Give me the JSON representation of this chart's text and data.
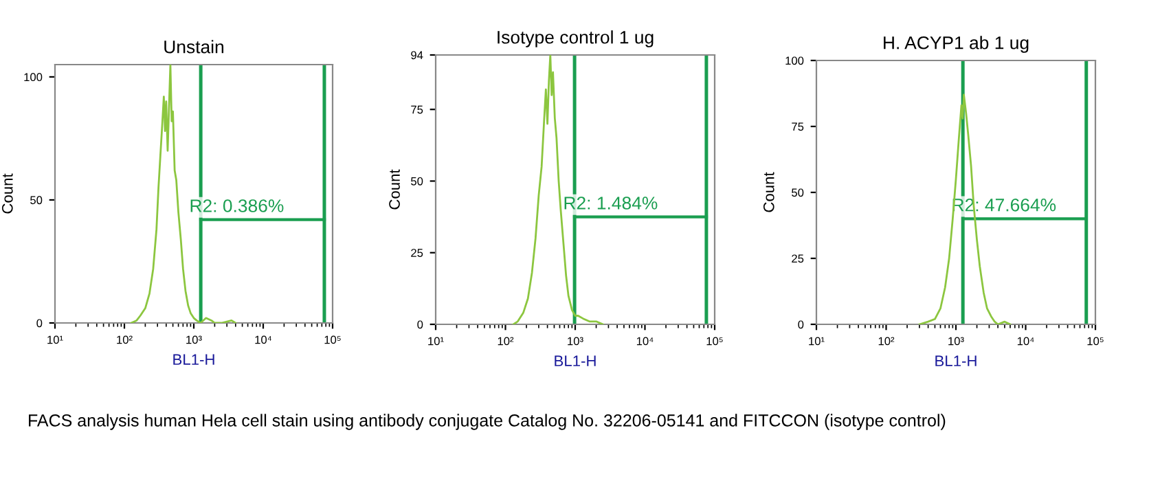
{
  "chart_data": [
    {
      "type": "line",
      "title": "Unstain",
      "xlabel": "BL1-H",
      "ylabel": "Count",
      "log": "x",
      "xlim": [
        10,
        100000
      ],
      "xticks": [
        {
          "value": 10,
          "label": "10¹"
        },
        {
          "value": 100,
          "label": "10²"
        },
        {
          "value": 1000,
          "label": "10³"
        },
        {
          "value": 10000,
          "label": "10⁴"
        },
        {
          "value": 100000,
          "label": "10⁵"
        }
      ],
      "ylim": [
        0,
        105
      ],
      "yticks": [
        0,
        50,
        100
      ],
      "grid": false,
      "legend": false,
      "series": [
        {
          "color": "#8cc63f",
          "x": [
            125,
            150,
            170,
            200,
            230,
            260,
            290,
            310,
            330,
            350,
            370,
            385,
            400,
            420,
            440,
            460,
            480,
            500,
            530,
            560,
            600,
            650,
            700,
            760,
            830,
            900,
            1000,
            1100,
            1250,
            1500,
            1800,
            2000,
            2500,
            3500,
            4000
          ],
          "values": [
            0,
            1,
            3,
            6,
            12,
            22,
            38,
            55,
            68,
            80,
            92,
            78,
            90,
            70,
            88,
            105,
            82,
            86,
            62,
            58,
            45,
            34,
            22,
            13,
            7,
            4,
            2,
            1,
            0,
            2,
            1,
            0,
            0,
            1,
            0
          ]
        },
        {
          "name": "R2: 0.386%",
          "color": "#1a9e50",
          "x": [
            1260,
            76000
          ],
          "values": [
            42,
            42
          ]
        }
      ],
      "ref_lines": [
        {
          "axis": "x",
          "value": 1260,
          "label": null,
          "color": "#1a9e50"
        },
        {
          "axis": "x",
          "value": 76000,
          "label": null,
          "color": "#1a9e50"
        }
      ]
    },
    {
      "type": "line",
      "title": "Isotype control 1 ug",
      "xlabel": "BL1-H",
      "ylabel": "Count",
      "log": "x",
      "xlim": [
        10,
        100000
      ],
      "xticks": [
        {
          "value": 10,
          "label": "10¹"
        },
        {
          "value": 100,
          "label": "10²"
        },
        {
          "value": 1000,
          "label": "10³"
        },
        {
          "value": 10000,
          "label": "10⁴"
        },
        {
          "value": 100000,
          "label": "10⁵"
        }
      ],
      "ylim": [
        0,
        94
      ],
      "yticks": [
        0,
        25,
        50,
        75,
        94
      ],
      "grid": false,
      "legend": false,
      "series": [
        {
          "color": "#8cc63f",
          "x": [
            130,
            150,
            180,
            210,
            240,
            270,
            300,
            330,
            360,
            380,
            400,
            420,
            440,
            460,
            480,
            510,
            540,
            580,
            620,
            680,
            740,
            800,
            900,
            1000,
            1100,
            1300,
            1600,
            2000,
            2500
          ],
          "values": [
            0,
            1,
            4,
            9,
            18,
            30,
            45,
            55,
            72,
            82,
            70,
            85,
            94,
            80,
            88,
            72,
            65,
            50,
            40,
            28,
            17,
            10,
            5,
            3,
            3,
            2,
            1,
            1,
            0
          ]
        },
        {
          "name": "R2: 1.484%",
          "color": "#1a9e50",
          "x": [
            980,
            76000
          ],
          "values": [
            37.5,
            37.5
          ]
        }
      ],
      "ref_lines": [
        {
          "axis": "x",
          "value": 980,
          "label": null,
          "color": "#1a9e50"
        },
        {
          "axis": "x",
          "value": 76000,
          "label": null,
          "color": "#1a9e50"
        }
      ]
    },
    {
      "type": "line",
      "title": "H. ACYP1 ab 1 ug",
      "xlabel": "BL1-H",
      "ylabel": "Count",
      "log": "x",
      "xlim": [
        10,
        100000
      ],
      "xticks": [
        {
          "value": 10,
          "label": "10¹"
        },
        {
          "value": 100,
          "label": "10²"
        },
        {
          "value": 1000,
          "label": "10³"
        },
        {
          "value": 10000,
          "label": "10⁴"
        },
        {
          "value": 100000,
          "label": "10⁵"
        }
      ],
      "ylim": [
        0,
        100
      ],
      "yticks": [
        0,
        25,
        50,
        75,
        100
      ],
      "grid": false,
      "legend": false,
      "series": [
        {
          "color": "#8cc63f",
          "x": [
            300,
            400,
            500,
            600,
            700,
            800,
            900,
            1000,
            1100,
            1200,
            1250,
            1300,
            1400,
            1500,
            1650,
            1800,
            2000,
            2200,
            2500,
            2800,
            3200,
            3600,
            4000,
            5000,
            6000
          ],
          "values": [
            0,
            1,
            2,
            6,
            14,
            25,
            40,
            55,
            70,
            83,
            78,
            87,
            80,
            72,
            60,
            45,
            32,
            22,
            12,
            6,
            3,
            1,
            0,
            1,
            0
          ]
        },
        {
          "name": "R2: 47.664%",
          "color": "#1a9e50",
          "x": [
            1260,
            74000
          ],
          "values": [
            40,
            40
          ]
        }
      ],
      "ref_lines": [
        {
          "axis": "x",
          "value": 1260,
          "label": null,
          "color": "#1a9e50"
        },
        {
          "axis": "x",
          "value": 74000,
          "label": null,
          "color": "#1a9e50"
        }
      ],
      "annotations": [
        "FACS analysis human Hela cell stain using antibody conjugate Catalog No. 32206-05141 and FITCCON (isotype control)"
      ]
    }
  ]
}
